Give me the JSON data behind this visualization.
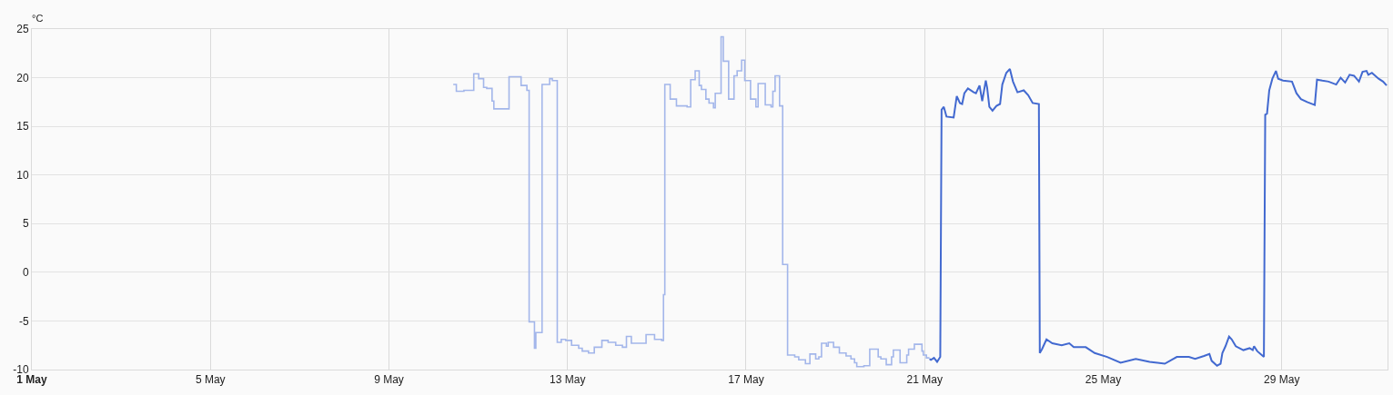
{
  "chart_data": {
    "type": "line",
    "ylabel": "°C",
    "xlim": [
      "--05-01",
      "--05-31T08:53"
    ],
    "xticks": [
      {
        "value": "--05-01",
        "label": "1 May"
      },
      {
        "value": "--05-05",
        "label": "5 May"
      },
      {
        "value": "--05-09",
        "label": "9 May"
      },
      {
        "value": "--05-13",
        "label": "13 May"
      },
      {
        "value": "--05-17",
        "label": "17 May"
      },
      {
        "value": "--05-21",
        "label": "21 May"
      },
      {
        "value": "--05-25",
        "label": "25 May"
      },
      {
        "value": "--05-29",
        "label": "29 May"
      }
    ],
    "ylim": [
      -10,
      25
    ],
    "yticks": [
      -10,
      -5,
      0,
      5,
      10,
      15,
      20,
      25
    ],
    "grid": true,
    "series": [
      {
        "type": "step",
        "color": "#a3b6ea",
        "x": [
          "--05-10T10:34",
          "--05-10T12:14",
          "--05-10T16:19",
          "--05-10T21:36",
          "--05-11T00:14",
          "--05-11T02:53",
          "--05-11T04:34",
          "--05-11T07:26",
          "--05-11T08:24",
          "--05-11T16:34",
          "--05-11T23:02",
          "--05-12T02:10",
          "--05-12T03:22",
          "--05-12T06:14",
          "--05-12T06:58",
          "--05-12T10:19",
          "--05-12T14:24",
          "--05-12T15:50",
          "--05-12T18:29",
          "--05-12T20:38",
          "--05-12T23:02",
          "--05-13T02:10",
          "--05-13T06:00",
          "--05-13T07:55",
          "--05-13T11:17",
          "--05-13T14:24",
          "--05-13T18:29",
          "--05-13T21:50",
          "--05-14T01:55",
          "--05-14T05:31",
          "--05-14T07:41",
          "--05-14T10:19",
          "--05-14T18:14",
          "--05-14T22:48",
          "--05-15T02:38",
          "--05-15T03:36",
          "--05-15T04:19",
          "--05-15T07:12",
          "--05-15T10:34",
          "--05-15T16:19",
          "--05-15T18:14",
          "--05-15T20:38",
          "--05-15T22:48",
          "--05-16T00:00",
          "--05-16T02:24",
          "--05-16T04:05",
          "--05-16T06:29",
          "--05-16T07:26",
          "--05-16T10:34",
          "--05-16T11:46",
          "--05-16T14:38",
          "--05-16T17:31",
          "--05-16T19:12",
          "--05-16T21:36",
          "--05-16T23:17",
          "--05-17T02:24",
          "--05-17T05:17",
          "--05-17T06:29",
          "--05-17T10:19",
          "--05-17T13:26",
          "--05-17T14:24",
          "--05-17T15:36",
          "--05-17T18:00",
          "--05-17T19:41",
          "--05-17T22:19",
          "--05-18T02:10",
          "--05-18T04:19",
          "--05-18T07:55",
          "--05-18T10:19",
          "--05-18T13:26",
          "--05-18T15:07",
          "--05-18T16:34",
          "--05-18T19:12",
          "--05-18T20:10",
          "--05-18T23:02",
          "--05-19T02:10",
          "--05-19T05:46",
          "--05-19T08:24",
          "--05-19T10:19",
          "--05-19T11:31",
          "--05-19T15:22",
          "--05-19T18:29",
          "--05-19T23:02",
          "--05-20T00:29",
          "--05-20T03:22",
          "--05-20T06:14",
          "--05-20T07:12",
          "--05-20T10:48",
          "--05-20T14:24",
          "--05-20T15:22",
          "--05-20T18:29",
          "--05-20T22:34",
          "--05-20T23:17",
          "--05-21T00:58",
          "--05-21T02:38"
        ],
        "values": [
          19.3,
          18.6,
          18.7,
          20.4,
          19.9,
          19.0,
          18.9,
          17.6,
          16.8,
          20.1,
          19.2,
          18.7,
          -5.1,
          -7.8,
          -6.2,
          19.3,
          19.9,
          19.7,
          -7.2,
          -6.9,
          -7.0,
          -7.5,
          -7.8,
          -8.1,
          -8.3,
          -7.7,
          -7.0,
          -7.2,
          -7.5,
          -7.7,
          -6.6,
          -7.3,
          -6.4,
          -6.9,
          -7.0,
          -2.3,
          19.3,
          17.8,
          17.1,
          17.0,
          19.8,
          20.7,
          19.2,
          18.8,
          17.8,
          17.4,
          16.9,
          18.4,
          24.2,
          21.7,
          17.8,
          20.2,
          20.7,
          21.8,
          19.7,
          17.8,
          17.0,
          19.4,
          17.2,
          17.0,
          18.6,
          20.2,
          17.1,
          0.8,
          -8.5,
          -8.7,
          -9.0,
          -9.4,
          -8.4,
          -8.9,
          -8.7,
          -7.3,
          -7.6,
          -7.2,
          -7.7,
          -8.3,
          -8.6,
          -8.9,
          -9.3,
          -9.7,
          -9.6,
          -7.9,
          -8.7,
          -8.9,
          -9.5,
          -8.7,
          -8.0,
          -9.3,
          -8.5,
          -7.9,
          -7.4,
          -8.1,
          -8.5,
          -8.8,
          -8.8
        ]
      },
      {
        "color": "#4269d0",
        "x": [
          "--05-21T02:38",
          "--05-21T03:22",
          "--05-21T05:02",
          "--05-21T06:43",
          "--05-21T08:24",
          "--05-21T09:07",
          "--05-21T10:19",
          "--05-21T11:46",
          "--05-21T15:36",
          "--05-21T17:17",
          "--05-21T18:58",
          "--05-21T20:10",
          "--05-21T21:22",
          "--05-21T23:17",
          "--05-22T02:24",
          "--05-22T03:36",
          "--05-22T05:31",
          "--05-22T06:58",
          "--05-22T08:53",
          "--05-22T09:36",
          "--05-22T10:48",
          "--05-22T12:29",
          "--05-22T14:38",
          "--05-22T16:34",
          "--05-22T17:46",
          "--05-22T19:55",
          "--05-22T21:50",
          "--05-22T23:31",
          "--05-23T01:55",
          "--05-23T05:17",
          "--05-23T07:41",
          "--05-23T10:05",
          "--05-23T13:26",
          "--05-23T13:55",
          "--05-23T15:07",
          "--05-23T17:31",
          "--05-23T20:38",
          "--05-24T01:41",
          "--05-24T05:46",
          "--05-24T08:10",
          "--05-24T14:38",
          "--05-24T19:26",
          "--05-25T02:10",
          "--05-25T09:22",
          "--05-25T17:31",
          "--05-26T00:58",
          "--05-26T09:07",
          "--05-26T15:36",
          "--05-26T22:05",
          "--05-27T01:26",
          "--05-27T06:14",
          "--05-27T09:07",
          "--05-27T10:19",
          "--05-27T13:12",
          "--05-27T15:07",
          "--05-27T16:05",
          "--05-27T17:46",
          "--05-27T19:41",
          "--05-27T21:07",
          "--05-27T23:17",
          "--05-28T03:22",
          "--05-28T06:43",
          "--05-28T08:24",
          "--05-28T09:07",
          "--05-28T10:48",
          "--05-28T14:24",
          "--05-28T15:07",
          "--05-28T16:05",
          "--05-28T17:17",
          "--05-28T18:58",
          "--05-28T20:53",
          "--05-28T22:05",
          "--05-29T00:43",
          "--05-29T05:31",
          "--05-29T07:55",
          "--05-29T10:19",
          "--05-29T13:41",
          "--05-29T17:46",
          "--05-29T18:58",
          "--05-29T21:50",
          "--05-30T01:12",
          "--05-30T05:17",
          "--05-30T07:41",
          "--05-30T10:05",
          "--05-30T12:29",
          "--05-30T14:53",
          "--05-30T17:31",
          "--05-30T19:26",
          "--05-30T21:36",
          "--05-30T22:34",
          "--05-31T00:29",
          "--05-31T04:05",
          "--05-31T06:29",
          "--05-31T08:24"
        ],
        "values": [
          -8.9,
          -9.0,
          -8.8,
          -9.2,
          -8.7,
          16.7,
          17.0,
          16.0,
          15.9,
          18.1,
          17.4,
          17.3,
          18.4,
          18.9,
          18.5,
          18.4,
          19.2,
          17.6,
          19.7,
          19.0,
          17.0,
          16.6,
          17.1,
          17.3,
          19.3,
          20.5,
          20.9,
          19.6,
          18.5,
          18.7,
          18.2,
          17.4,
          17.3,
          -8.3,
          -7.9,
          -6.9,
          -7.3,
          -7.5,
          -7.3,
          -7.7,
          -7.7,
          -8.3,
          -8.7,
          -9.3,
          -8.9,
          -9.2,
          -9.4,
          -8.7,
          -8.7,
          -8.9,
          -8.6,
          -8.4,
          -9.1,
          -9.6,
          -9.4,
          -8.3,
          -7.6,
          -6.6,
          -6.9,
          -7.6,
          -8.0,
          -7.8,
          -8.0,
          -7.6,
          -8.1,
          -8.7,
          16.2,
          16.3,
          18.7,
          19.9,
          20.7,
          19.9,
          19.7,
          19.6,
          18.4,
          17.8,
          17.5,
          17.2,
          19.8,
          19.7,
          19.6,
          19.3,
          20.0,
          19.5,
          20.3,
          20.2,
          19.6,
          20.6,
          20.7,
          20.3,
          20.5,
          19.9,
          19.6,
          19.2
        ]
      }
    ]
  }
}
